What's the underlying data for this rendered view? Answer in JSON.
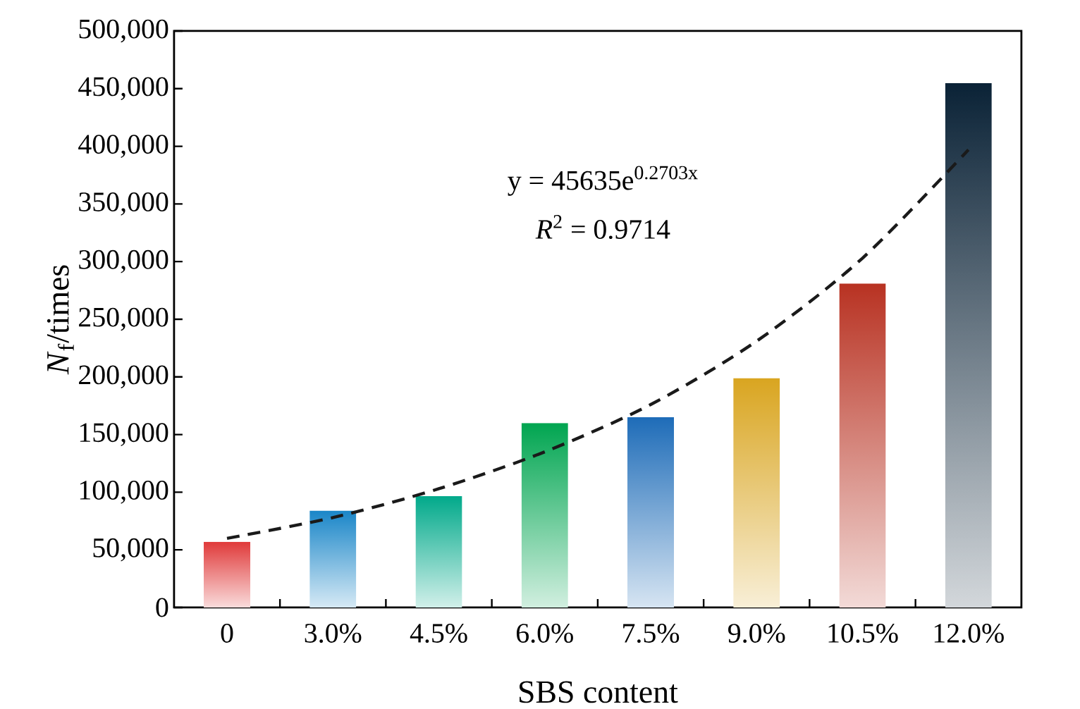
{
  "chart_data": {
    "type": "bar",
    "categories": [
      "0",
      "3.0%",
      "4.5%",
      "6.0%",
      "7.5%",
      "9.0%",
      "10.5%",
      "12.0%"
    ],
    "series": [
      {
        "values": [
          57000,
          84000,
          97000,
          160000,
          165000,
          199000,
          281000,
          455000
        ],
        "colors": [
          "#e03a3a",
          "#1a86c8",
          "#00a98a",
          "#00a550",
          "#1e6cb8",
          "#d9a520",
          "#b83222",
          "#0a2236"
        ]
      },
      {
        "type": "line",
        "color": "#1a1a1a",
        "line_style": "dashed",
        "values": [
          60000,
          78000,
          103000,
          135000,
          176000,
          231000,
          303000,
          397000
        ]
      }
    ],
    "xlabel": "SBS content",
    "ylabel": "*N*$_{f}$/times",
    "ylim": [
      0,
      500000
    ],
    "yticks": [
      {
        "value": 0,
        "label": "0"
      },
      {
        "value": 50000,
        "label": "50,000"
      },
      {
        "value": 100000,
        "label": "100,000"
      },
      {
        "value": 150000,
        "label": "150,000"
      },
      {
        "value": 200000,
        "label": "200,000"
      },
      {
        "value": 250000,
        "label": "250,000"
      },
      {
        "value": 300000,
        "label": "300,000"
      },
      {
        "value": 350000,
        "label": "350,000"
      },
      {
        "value": 400000,
        "label": "400,000"
      },
      {
        "value": 450000,
        "label": "450,000"
      },
      {
        "value": 500000,
        "label": "500,000"
      }
    ],
    "annotations": [
      "y = 45635e$^{0.2703x}$",
      "*R*$^{2}$ = 0.9714"
    ],
    "grid": false
  }
}
